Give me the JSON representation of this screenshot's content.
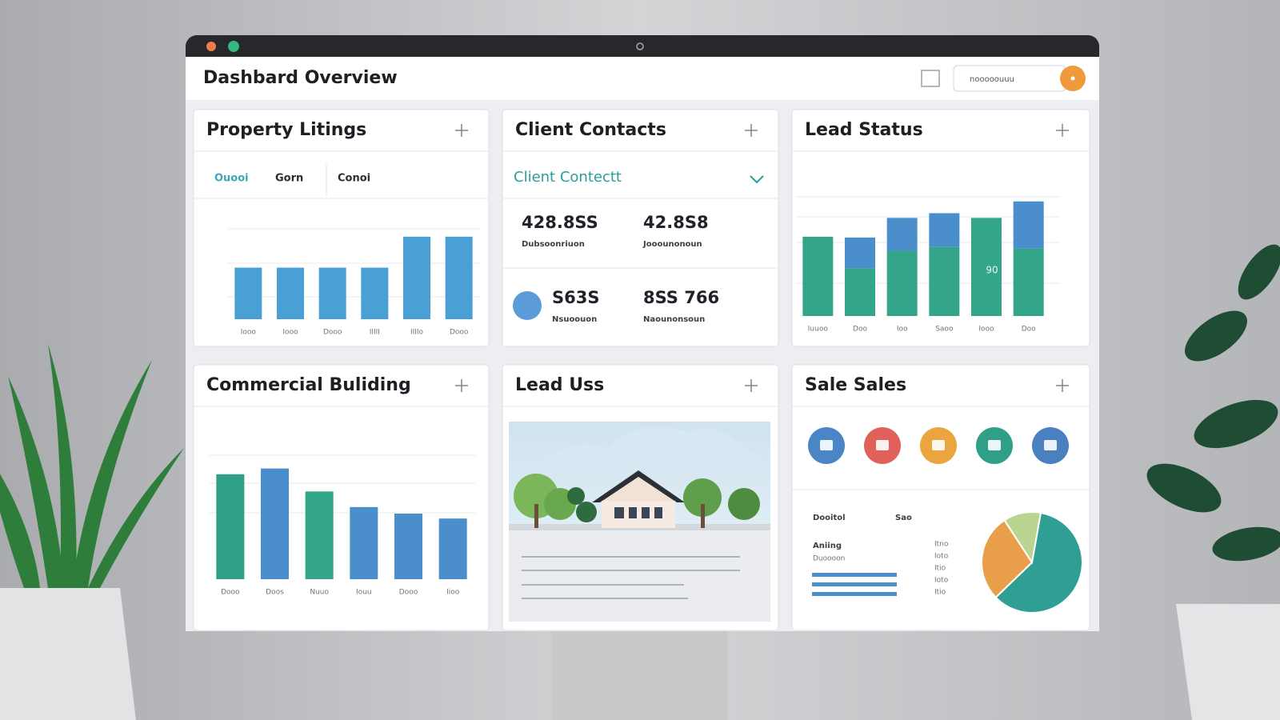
{
  "header": {
    "title": "Dashbard Overview",
    "search": "nooooouuu"
  },
  "property": {
    "title": "Property Litings",
    "tabs": [
      "Ouooi",
      "Gorn",
      "Conoi"
    ],
    "chart": {
      "type": "bar",
      "categories": [
        "Iooo",
        "Iooo",
        "Dooo",
        "IIIII",
        "IIIIo",
        "Dooo"
      ],
      "values": [
        65,
        65,
        65,
        65,
        104,
        104
      ],
      "ylim": [
        0,
        120
      ],
      "color": "#4a9fd4"
    }
  },
  "contacts": {
    "title": "Client Contacts",
    "dropdown": "Client Contectt",
    "stats": [
      {
        "value": "428.8SS",
        "label": "Dubsoonriuon"
      },
      {
        "value": "42.8S8",
        "label": "Jooounonoun"
      },
      {
        "value": "S63S",
        "label": "Nsuoouon"
      },
      {
        "value": "8SS 766",
        "label": "Naounonsoun"
      }
    ]
  },
  "lead_status": {
    "title": "Lead Status",
    "chart": {
      "type": "stacked_bar",
      "categories": [
        "Iuuoo",
        "Doo",
        "Ioo",
        "Saoo",
        "Iooo",
        "Doo"
      ],
      "series": [
        {
          "color": "#33a68a",
          "values": [
            101,
            61,
            83,
            88,
            125,
            86
          ]
        },
        {
          "color": "#4a8fcb",
          "values": [
            0,
            39,
            42,
            43,
            0,
            60
          ]
        }
      ],
      "ylim": [
        0,
        160
      ],
      "annotation": "90"
    }
  },
  "commercial": {
    "title": "Commercial Buliding",
    "chart": {
      "type": "bar",
      "categories": [
        "Dooo",
        "Doos",
        "Nuuo",
        "Iouu",
        "Dooo",
        "Iioo"
      ],
      "values": [
        128,
        135,
        107,
        88,
        80,
        74
      ],
      "colors": [
        "#2f9f88",
        "#4a8fcb",
        "#33a68a",
        "#4a8fcb",
        "#4a8fcb",
        "#4a8fcb"
      ],
      "ylim": [
        0,
        160
      ]
    }
  },
  "lead_uss": {
    "title": "Lead Uss"
  },
  "sales": {
    "title": "Sale Sales",
    "icon_colors": [
      "#4a86c5",
      "#e0615a",
      "#eba53e",
      "#2f9f88",
      "#4a7fc0"
    ],
    "table": {
      "headers": [
        "Dooitol",
        "Sao"
      ],
      "row": "Aniing",
      "subrow": "Duoooon",
      "numbers": [
        "Itno",
        "Ioto",
        "Itio",
        "Ioto",
        "Itio"
      ]
    },
    "pie": {
      "type": "pie",
      "values": [
        60,
        28,
        12
      ],
      "colors": [
        "#2f9f94",
        "#e99f4a",
        "#b9d58f"
      ]
    }
  }
}
